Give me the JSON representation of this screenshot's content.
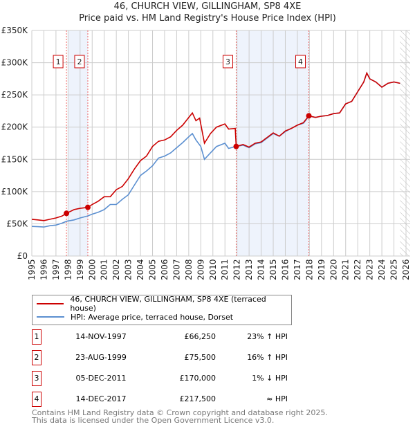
{
  "chart_data": {
    "type": "line",
    "title": "46, CHURCH VIEW, GILLINGHAM, SP8 4XE",
    "subtitle": "Price paid vs. HM Land Registry's House Price Index (HPI)",
    "xlim": [
      1995,
      2026
    ],
    "ylim": [
      0,
      350000
    ],
    "x_ticks": [
      "1995",
      "1996",
      "1997",
      "1998",
      "1999",
      "2000",
      "2001",
      "2002",
      "2003",
      "2004",
      "2005",
      "2006",
      "2007",
      "2008",
      "2009",
      "2010",
      "2011",
      "2012",
      "2013",
      "2014",
      "2015",
      "2016",
      "2017",
      "2018",
      "2019",
      "2020",
      "2021",
      "2022",
      "2023",
      "2024",
      "2025",
      "2026"
    ],
    "y_ticks": [
      {
        "v": 0,
        "label": "£0"
      },
      {
        "v": 50000,
        "label": "£50K"
      },
      {
        "v": 100000,
        "label": "£100K"
      },
      {
        "v": 150000,
        "label": "£150K"
      },
      {
        "v": 200000,
        "label": "£200K"
      },
      {
        "v": 250000,
        "label": "£250K"
      },
      {
        "v": 300000,
        "label": "£300K"
      },
      {
        "v": 350000,
        "label": "£350K"
      }
    ],
    "grid": true,
    "series": [
      {
        "name": "46, CHURCH VIEW, GILLINGHAM, SP8 4XE (terraced house)",
        "color": "#cc0000",
        "x": [
          1995,
          1995.5,
          1996,
          1996.5,
          1997,
          1997.5,
          1997.87,
          1998.5,
          1999,
          1999.64,
          2000,
          2000.5,
          2001,
          2001.5,
          2002,
          2002.5,
          2003,
          2003.5,
          2004,
          2004.5,
          2005,
          2005.5,
          2006,
          2006.5,
          2007,
          2007.5,
          2008,
          2008.3,
          2008.6,
          2008.9,
          2009.3,
          2009.8,
          2010.3,
          2011,
          2011.3,
          2011.85,
          2011.93,
          2012.5,
          2013,
          2013.5,
          2014,
          2014.5,
          2015,
          2015.5,
          2016,
          2016.5,
          2017,
          2017.5,
          2017.95,
          2018.5,
          2019,
          2019.5,
          2020,
          2020.5,
          2021,
          2021.5,
          2022,
          2022.5,
          2022.75,
          2023,
          2023.5,
          2024,
          2024.5,
          2025,
          2025.5
        ],
        "y": [
          57,
          56,
          55,
          57,
          59,
          62,
          66.25,
          72,
          74,
          75.5,
          80,
          85,
          92,
          92,
          103,
          108,
          120,
          135,
          148,
          155,
          170,
          178,
          180,
          185,
          195,
          203,
          215,
          222,
          210,
          214,
          175,
          190,
          200,
          205,
          197,
          198,
          170,
          173,
          169,
          175,
          177,
          184,
          191,
          186,
          194,
          198,
          203,
          207,
          217.5,
          215,
          217,
          218,
          221,
          222,
          236,
          240,
          255,
          270,
          284,
          275,
          270,
          262,
          268,
          270,
          268
        ]
      },
      {
        "name": "HPI: Average price, terraced house, Dorset",
        "color": "#5b8fd0",
        "x": [
          1995,
          1995.5,
          1996,
          1996.5,
          1997,
          1997.5,
          1997.9,
          1998.5,
          1999,
          1999.6,
          2000,
          2000.5,
          2001,
          2001.5,
          2002,
          2002.5,
          2003,
          2003.5,
          2004,
          2004.5,
          2005,
          2005.5,
          2006,
          2006.5,
          2007,
          2007.5,
          2008,
          2008.3,
          2008.6,
          2009,
          2009.3,
          2009.7,
          2010.3,
          2011,
          2011.3,
          2011.9,
          2012.5,
          2013,
          2013.5,
          2014,
          2014.5,
          2015,
          2015.5,
          2016,
          2016.5,
          2017,
          2017.5,
          2017.95,
          2018.5,
          2019,
          2019.5,
          2020,
          2020.5,
          2021,
          2021.5,
          2022,
          2022.5,
          2022.75,
          2023,
          2023.5,
          2024,
          2024.5,
          2025,
          2025.5
        ],
        "y": [
          46,
          45.5,
          45,
          47,
          48,
          51,
          54,
          56,
          59,
          62,
          65,
          68,
          72,
          80,
          80,
          88,
          95,
          110,
          125,
          132,
          140,
          152,
          155,
          160,
          168,
          176,
          185,
          190,
          180,
          170,
          150,
          158,
          170,
          175,
          167,
          170,
          172,
          168,
          174,
          176,
          183,
          190,
          186,
          193,
          198,
          203,
          206,
          217,
          215,
          217,
          218,
          221,
          222,
          236,
          240,
          255,
          270,
          284,
          275,
          270,
          262,
          268,
          270,
          268
        ]
      }
    ],
    "y_units": "thousands GBP",
    "sales": [
      {
        "n": "1",
        "x": 1997.87,
        "y": 66250
      },
      {
        "n": "2",
        "x": 1999.64,
        "y": 75500
      },
      {
        "n": "3",
        "x": 2011.93,
        "y": 170000
      },
      {
        "n": "4",
        "x": 2017.95,
        "y": 217500
      }
    ],
    "shaded": [
      [
        1998.0,
        1999.64
      ],
      [
        2012.0,
        2017.95
      ]
    ],
    "hatched_from": 2025.5,
    "legend_position": "below"
  },
  "legend": [
    {
      "label": "46, CHURCH VIEW, GILLINGHAM, SP8 4XE (terraced house)",
      "color": "#cc0000"
    },
    {
      "label": "HPI: Average price, terraced house, Dorset",
      "color": "#5b8fd0"
    }
  ],
  "transactions": [
    {
      "n": "1",
      "date": "14-NOV-1997",
      "price": "£66,250",
      "hpi": "23% ↑ HPI"
    },
    {
      "n": "2",
      "date": "23-AUG-1999",
      "price": "£75,500",
      "hpi": "16% ↑ HPI"
    },
    {
      "n": "3",
      "date": "05-DEC-2011",
      "price": "£170,000",
      "hpi": "1% ↓ HPI"
    },
    {
      "n": "4",
      "date": "14-DEC-2017",
      "price": "£217,500",
      "hpi": "≈ HPI"
    }
  ],
  "footer": [
    "Contains HM Land Registry data © Crown copyright and database right 2025.",
    "This data is licensed under the Open Government Licence v3.0."
  ]
}
